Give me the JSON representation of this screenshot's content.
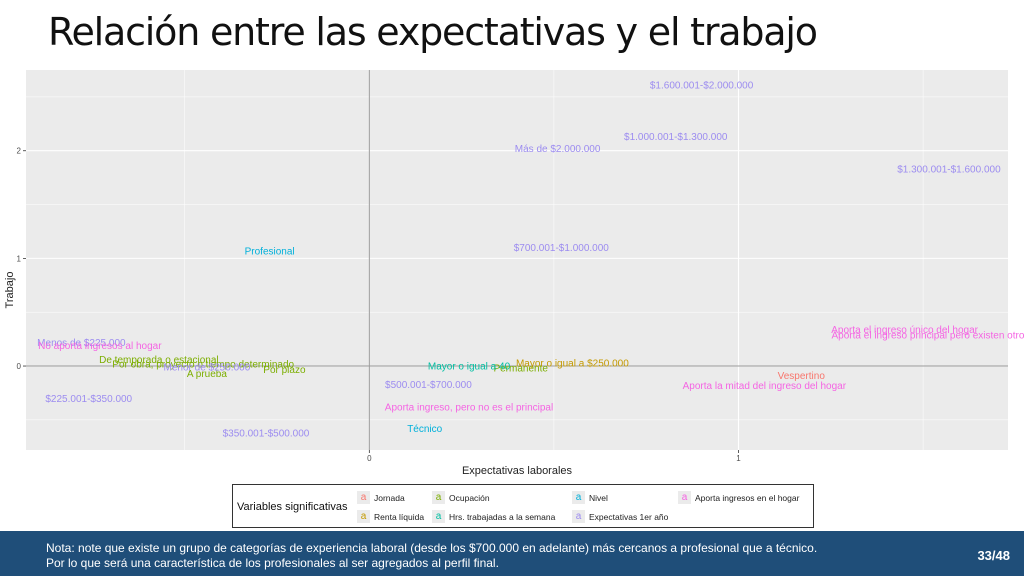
{
  "title": "Relación entre las expectativas y el trabajo",
  "chart_data": {
    "type": "scatter",
    "title": "",
    "xlabel": "Expectativas laborales",
    "ylabel": "Trabajo",
    "xlim": [
      -0.93,
      1.73
    ],
    "ylim": [
      -0.78,
      2.75
    ],
    "x_ticks": [
      0,
      1
    ],
    "y_ticks": [
      0,
      1,
      2
    ],
    "grid": true,
    "background": "#ebebeb",
    "legend_position": "bottom",
    "series": [
      {
        "name": "Jornada",
        "color": "#F8766D",
        "points": [
          {
            "label": "Vespertino",
            "x": 1.17,
            "y": -0.09
          }
        ]
      },
      {
        "name": "Ocupación",
        "color": "#7CAE00",
        "points": [
          {
            "label": "De temporada o estacional",
            "x": -0.57,
            "y": 0.06
          },
          {
            "label": "Por obra, proyecto o tiempo determinado",
            "x": -0.45,
            "y": 0.02
          },
          {
            "label": "Por plazo",
            "x": -0.23,
            "y": -0.03
          },
          {
            "label": "A prueba",
            "x": -0.44,
            "y": -0.07
          },
          {
            "label": "Permanente",
            "x": 0.41,
            "y": -0.02
          }
        ]
      },
      {
        "name": "Renta líquida",
        "color": "#C49A00",
        "points": [
          {
            "label": "Mayor o igual a $250.000",
            "x": 0.55,
            "y": 0.03
          }
        ]
      },
      {
        "name": "Hrs. trabajadas a la semana",
        "color": "#00BFA2",
        "points": [
          {
            "label": "Mayor o igual a 40",
            "x": 0.27,
            "y": 0.0
          }
        ]
      },
      {
        "name": "Nivel",
        "color": "#00B0DA",
        "points": [
          {
            "label": "Profesional",
            "x": -0.27,
            "y": 1.07
          },
          {
            "label": "Técnico",
            "x": 0.15,
            "y": -0.58
          }
        ]
      },
      {
        "name": "Expectativas 1er año",
        "color": "#9C8CF0",
        "points": [
          {
            "label": "$1.600.001-$2.000.000",
            "x": 0.9,
            "y": 2.61
          },
          {
            "label": "$1.000.001-$1.300.000",
            "x": 0.83,
            "y": 2.13
          },
          {
            "label": "Más de $2.000.000",
            "x": 0.51,
            "y": 2.02
          },
          {
            "label": "$1.300.001-$1.600.000",
            "x": 1.57,
            "y": 1.83
          },
          {
            "label": "$700.001-$1.000.000",
            "x": 0.52,
            "y": 1.1
          },
          {
            "label": "Menos de $225.000",
            "x": -0.78,
            "y": 0.22
          },
          {
            "label": "Menor de $250.000",
            "x": -0.44,
            "y": -0.01
          },
          {
            "label": "$500.001-$700.000",
            "x": 0.16,
            "y": -0.17
          },
          {
            "label": "$225.001-$350.000",
            "x": -0.76,
            "y": -0.3
          },
          {
            "label": "$350.001-$500.000",
            "x": -0.28,
            "y": -0.62
          }
        ]
      },
      {
        "name": "Aporta ingresos en el hogar",
        "color": "#F564E3",
        "points": [
          {
            "label": "No aporta ingresos al hogar",
            "x": -0.73,
            "y": 0.19
          },
          {
            "label": "Aporta el ingreso único del hogar",
            "x": 1.45,
            "y": 0.34
          },
          {
            "label": "Aporta el ingreso principal pero existen otros",
            "x": 1.52,
            "y": 0.29
          },
          {
            "label": "Aporta la mitad del ingreso del hogar",
            "x": 1.07,
            "y": -0.18
          },
          {
            "label": "Aporta ingreso, pero no es el principal",
            "x": 0.27,
            "y": -0.38
          }
        ]
      }
    ]
  },
  "legend": {
    "title": "Variables significativas",
    "glyph": "a",
    "items": [
      {
        "label": "Jornada",
        "color": "#F8766D"
      },
      {
        "label": "Renta líquida",
        "color": "#C49A00"
      },
      {
        "label": "Ocupación",
        "color": "#7CAE00"
      },
      {
        "label": "Hrs. trabajadas a la semana",
        "color": "#00BFA2"
      },
      {
        "label": "Nivel",
        "color": "#00B0DA"
      },
      {
        "label": "Expectativas 1er año",
        "color": "#9C8CF0"
      },
      {
        "label": "Aporta ingresos en el hogar",
        "color": "#F564E3"
      }
    ]
  },
  "footer": {
    "note_line1": "Nota: note que existe un grupo de categorías de experiencia laboral (desde los $700.000 en adelante) más cercanos a profesional que a técnico.",
    "note_line2": "Por lo que será una característica de los profesionales al ser agregados al perfil final.",
    "page": "33/48"
  },
  "colors": {
    "footer_bg": "#1f4e79",
    "panel_bg": "#ebebeb"
  }
}
